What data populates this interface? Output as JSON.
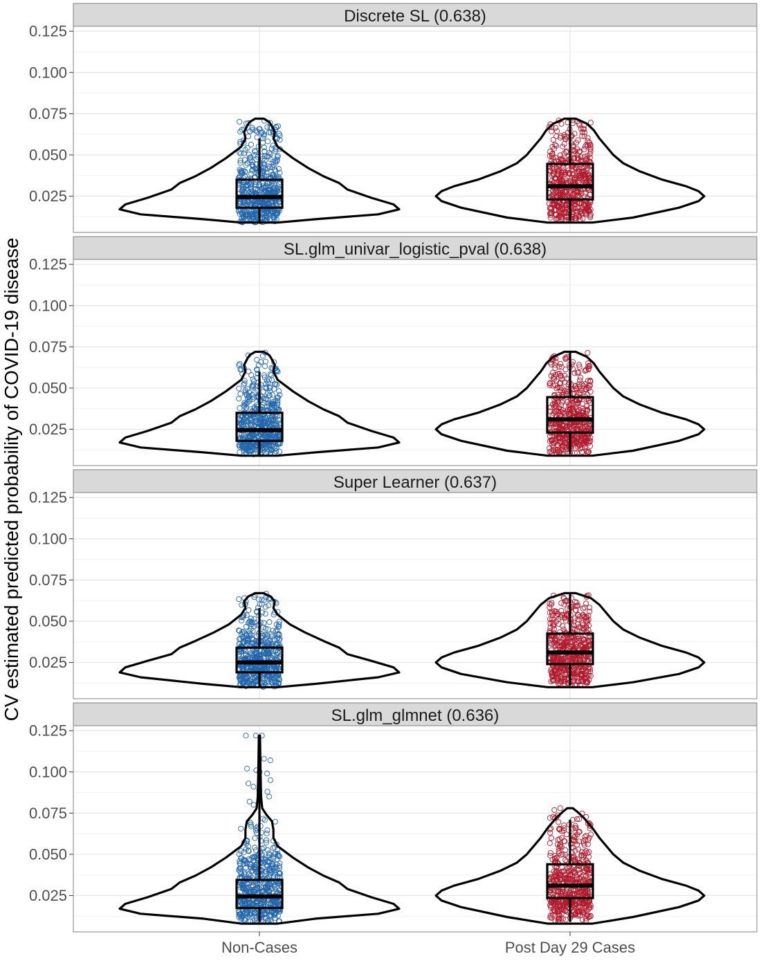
{
  "chart_data": {
    "type": "violin",
    "ylabel": "CV estimated predicted probability of COVID-19 disease",
    "xlabel": "",
    "categories": [
      "Non-Cases",
      "Post Day 29 Cases"
    ],
    "yticks": [
      "0.025",
      "0.050",
      "0.075",
      "0.100",
      "0.125"
    ],
    "ylim": [
      0.003,
      0.128
    ],
    "grid": true,
    "colors": {
      "Non-Cases": "#2166ac",
      "Post Day 29 Cases": "#b2182b"
    },
    "panels": [
      {
        "title": "Discrete SL (0.638)",
        "groups": [
          {
            "category": "Non-Cases",
            "min": 0.009,
            "q1": 0.018,
            "median": 0.0245,
            "q3": 0.035,
            "max": 0.072,
            "upper_whisker": 0.06,
            "density": [
              [
                0.009,
                0.13
              ],
              [
                0.011,
                0.4
              ],
              [
                0.014,
                0.85
              ],
              [
                0.017,
                1.0
              ],
              [
                0.02,
                0.96
              ],
              [
                0.024,
                0.8
              ],
              [
                0.029,
                0.63
              ],
              [
                0.033,
                0.57
              ],
              [
                0.037,
                0.46
              ],
              [
                0.042,
                0.35
              ],
              [
                0.048,
                0.24
              ],
              [
                0.055,
                0.13
              ],
              [
                0.06,
                0.1
              ],
              [
                0.064,
                0.11
              ],
              [
                0.068,
                0.085
              ],
              [
                0.07,
                0.07
              ],
              [
                0.072,
                0.03
              ]
            ]
          },
          {
            "category": "Post Day 29 Cases",
            "min": 0.01,
            "q1": 0.023,
            "median": 0.031,
            "q3": 0.0445,
            "max": 0.072,
            "upper_whisker": 0.072,
            "density": [
              [
                0.009,
                0.16
              ],
              [
                0.012,
                0.45
              ],
              [
                0.018,
                0.78
              ],
              [
                0.022,
                0.92
              ],
              [
                0.025,
                0.96
              ],
              [
                0.028,
                0.92
              ],
              [
                0.031,
                0.83
              ],
              [
                0.035,
                0.66
              ],
              [
                0.04,
                0.5
              ],
              [
                0.045,
                0.38
              ],
              [
                0.05,
                0.31
              ],
              [
                0.055,
                0.26
              ],
              [
                0.06,
                0.21
              ],
              [
                0.065,
                0.17
              ],
              [
                0.069,
                0.12
              ],
              [
                0.072,
                0.04
              ]
            ]
          }
        ]
      },
      {
        "title": "SL.glm_univar_logistic_pval (0.638)",
        "groups": [
          {
            "category": "Non-Cases",
            "min": 0.009,
            "q1": 0.018,
            "median": 0.0245,
            "q3": 0.035,
            "max": 0.072,
            "upper_whisker": 0.06,
            "density": [
              [
                0.009,
                0.13
              ],
              [
                0.011,
                0.4
              ],
              [
                0.014,
                0.85
              ],
              [
                0.017,
                1.0
              ],
              [
                0.02,
                0.96
              ],
              [
                0.024,
                0.8
              ],
              [
                0.029,
                0.63
              ],
              [
                0.033,
                0.57
              ],
              [
                0.037,
                0.46
              ],
              [
                0.042,
                0.35
              ],
              [
                0.048,
                0.24
              ],
              [
                0.055,
                0.13
              ],
              [
                0.06,
                0.1
              ],
              [
                0.064,
                0.11
              ],
              [
                0.068,
                0.085
              ],
              [
                0.07,
                0.07
              ],
              [
                0.072,
                0.03
              ]
            ]
          },
          {
            "category": "Post Day 29 Cases",
            "min": 0.01,
            "q1": 0.023,
            "median": 0.031,
            "q3": 0.0445,
            "max": 0.072,
            "upper_whisker": 0.072,
            "density": [
              [
                0.009,
                0.16
              ],
              [
                0.012,
                0.45
              ],
              [
                0.018,
                0.78
              ],
              [
                0.022,
                0.92
              ],
              [
                0.025,
                0.96
              ],
              [
                0.028,
                0.92
              ],
              [
                0.031,
                0.83
              ],
              [
                0.035,
                0.66
              ],
              [
                0.04,
                0.5
              ],
              [
                0.045,
                0.38
              ],
              [
                0.05,
                0.31
              ],
              [
                0.055,
                0.26
              ],
              [
                0.06,
                0.21
              ],
              [
                0.065,
                0.17
              ],
              [
                0.069,
                0.12
              ],
              [
                0.072,
                0.04
              ]
            ]
          }
        ]
      },
      {
        "title": "Super Learner (0.637)",
        "groups": [
          {
            "category": "Non-Cases",
            "min": 0.01,
            "q1": 0.019,
            "median": 0.025,
            "q3": 0.034,
            "max": 0.067,
            "upper_whisker": 0.058,
            "density": [
              [
                0.01,
                0.13
              ],
              [
                0.012,
                0.4
              ],
              [
                0.016,
                0.85
              ],
              [
                0.019,
                1.0
              ],
              [
                0.022,
                0.96
              ],
              [
                0.026,
                0.8
              ],
              [
                0.03,
                0.63
              ],
              [
                0.034,
                0.57
              ],
              [
                0.038,
                0.46
              ],
              [
                0.043,
                0.33
              ],
              [
                0.048,
                0.22
              ],
              [
                0.054,
                0.13
              ],
              [
                0.058,
                0.1
              ],
              [
                0.062,
                0.11
              ],
              [
                0.065,
                0.08
              ],
              [
                0.067,
                0.03
              ]
            ]
          },
          {
            "category": "Post Day 29 Cases",
            "min": 0.011,
            "q1": 0.024,
            "median": 0.031,
            "q3": 0.0425,
            "max": 0.067,
            "upper_whisker": 0.067,
            "density": [
              [
                0.01,
                0.16
              ],
              [
                0.013,
                0.45
              ],
              [
                0.018,
                0.78
              ],
              [
                0.022,
                0.92
              ],
              [
                0.025,
                0.96
              ],
              [
                0.028,
                0.92
              ],
              [
                0.031,
                0.83
              ],
              [
                0.035,
                0.66
              ],
              [
                0.04,
                0.5
              ],
              [
                0.045,
                0.38
              ],
              [
                0.05,
                0.31
              ],
              [
                0.055,
                0.26
              ],
              [
                0.06,
                0.21
              ],
              [
                0.064,
                0.15
              ],
              [
                0.067,
                0.04
              ]
            ]
          }
        ]
      },
      {
        "title": "SL.glm_glmnet (0.636)",
        "groups": [
          {
            "category": "Non-Cases",
            "min": 0.009,
            "q1": 0.0175,
            "median": 0.0245,
            "q3": 0.0345,
            "max": 0.122,
            "upper_whisker": 0.122,
            "outliers": [
              0.122,
              0.122,
              0.122,
              0.108,
              0.107,
              0.102,
              0.101,
              0.1,
              0.099,
              0.095,
              0.093,
              0.091,
              0.089,
              0.088,
              0.085,
              0.082,
              0.08
            ],
            "density": [
              [
                0.008,
                0.13
              ],
              [
                0.011,
                0.4
              ],
              [
                0.014,
                0.85
              ],
              [
                0.017,
                1.0
              ],
              [
                0.02,
                0.96
              ],
              [
                0.024,
                0.8
              ],
              [
                0.029,
                0.63
              ],
              [
                0.033,
                0.57
              ],
              [
                0.037,
                0.46
              ],
              [
                0.042,
                0.35
              ],
              [
                0.048,
                0.24
              ],
              [
                0.055,
                0.13
              ],
              [
                0.06,
                0.1
              ],
              [
                0.065,
                0.1
              ],
              [
                0.07,
                0.09
              ],
              [
                0.074,
                0.05
              ],
              [
                0.078,
                0.02
              ],
              [
                0.085,
                0.012
              ],
              [
                0.1,
                0.008
              ],
              [
                0.122,
                0.004
              ]
            ]
          },
          {
            "category": "Post Day 29 Cases",
            "min": 0.009,
            "q1": 0.0235,
            "median": 0.031,
            "q3": 0.044,
            "max": 0.078,
            "upper_whisker": 0.071,
            "outliers": [
              0.078
            ],
            "density": [
              [
                0.008,
                0.16
              ],
              [
                0.012,
                0.45
              ],
              [
                0.018,
                0.78
              ],
              [
                0.022,
                0.92
              ],
              [
                0.025,
                0.96
              ],
              [
                0.028,
                0.92
              ],
              [
                0.031,
                0.83
              ],
              [
                0.035,
                0.66
              ],
              [
                0.04,
                0.5
              ],
              [
                0.045,
                0.38
              ],
              [
                0.05,
                0.31
              ],
              [
                0.055,
                0.26
              ],
              [
                0.06,
                0.21
              ],
              [
                0.066,
                0.16
              ],
              [
                0.072,
                0.1
              ],
              [
                0.076,
                0.05
              ],
              [
                0.078,
                0.02
              ]
            ]
          }
        ]
      }
    ]
  }
}
